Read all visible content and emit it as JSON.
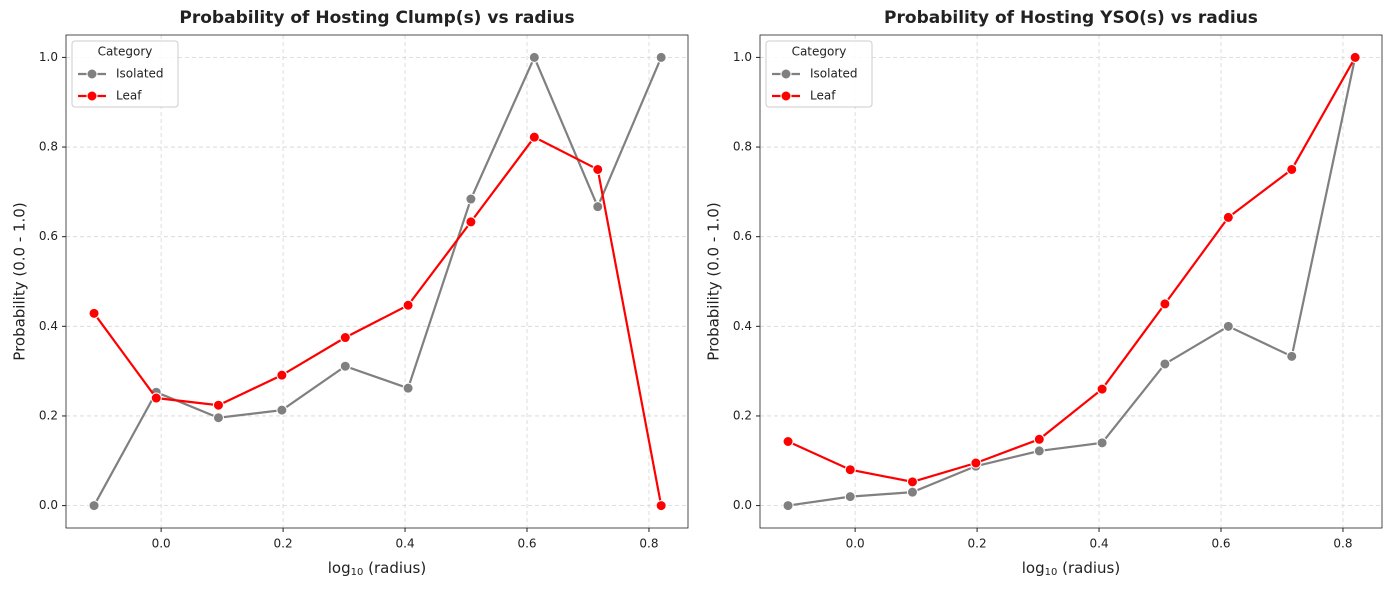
{
  "chart_data": [
    {
      "type": "line",
      "title": "Probability of Hosting Clump(s) vs radius",
      "xlabel": {
        "base": "log",
        "sub": "10",
        "rest": " (radius)"
      },
      "ylabel": "Probability (0.0 - 1.0)",
      "legend_title": "Category",
      "legend": "upper left",
      "grid": true,
      "x": [
        -0.11,
        -0.008,
        0.094,
        0.198,
        0.302,
        0.405,
        0.508,
        0.612,
        0.716,
        0.82
      ],
      "xlim": [
        -0.156,
        0.864
      ],
      "xticks": [
        {
          "value": 0,
          "label": "0.0"
        },
        0.2,
        0.4,
        0.6,
        0.8
      ],
      "ylim": [
        -0.05,
        1.05
      ],
      "yticks": [
        {
          "value": 0,
          "label": "0.0"
        },
        0.2,
        0.4,
        0.6,
        0.8,
        {
          "value": 1,
          "label": "1.0"
        }
      ],
      "series": [
        {
          "name": "Isolated",
          "color": "#808080",
          "values": [
            0,
            0.253,
            0.196,
            0.213,
            0.311,
            0.262,
            0.684,
            1.0,
            0.667,
            1.0
          ]
        },
        {
          "name": "Leaf",
          "color": "#ff0000",
          "values": [
            0.429,
            0.24,
            0.224,
            0.291,
            0.375,
            0.447,
            0.633,
            0.822,
            0.75,
            0
          ]
        }
      ]
    },
    {
      "type": "line",
      "title": "Probability of Hosting YSO(s) vs radius",
      "xlabel": {
        "base": "log",
        "sub": "10",
        "rest": " (radius)"
      },
      "ylabel": "Probability (0.0 - 1.0)",
      "legend_title": "Category",
      "legend": "upper left",
      "grid": true,
      "x": [
        -0.11,
        -0.008,
        0.094,
        0.198,
        0.302,
        0.405,
        0.508,
        0.612,
        0.716,
        0.82
      ],
      "xlim": [
        -0.156,
        0.864
      ],
      "xticks": [
        {
          "value": 0,
          "label": "0.0"
        },
        0.2,
        0.4,
        0.6,
        0.8
      ],
      "ylim": [
        -0.05,
        1.05
      ],
      "yticks": [
        {
          "value": 0,
          "label": "0.0"
        },
        0.2,
        0.4,
        0.6,
        0.8,
        {
          "value": 1,
          "label": "1.0"
        }
      ],
      "series": [
        {
          "name": "Isolated",
          "color": "#808080",
          "values": [
            0,
            0.02,
            0.03,
            0.088,
            0.122,
            0.14,
            0.316,
            0.4,
            0.333,
            1.0
          ]
        },
        {
          "name": "Leaf",
          "color": "#ff0000",
          "values": [
            0.143,
            0.08,
            0.053,
            0.095,
            0.148,
            0.26,
            0.45,
            0.643,
            0.75,
            1.0
          ]
        }
      ]
    }
  ]
}
